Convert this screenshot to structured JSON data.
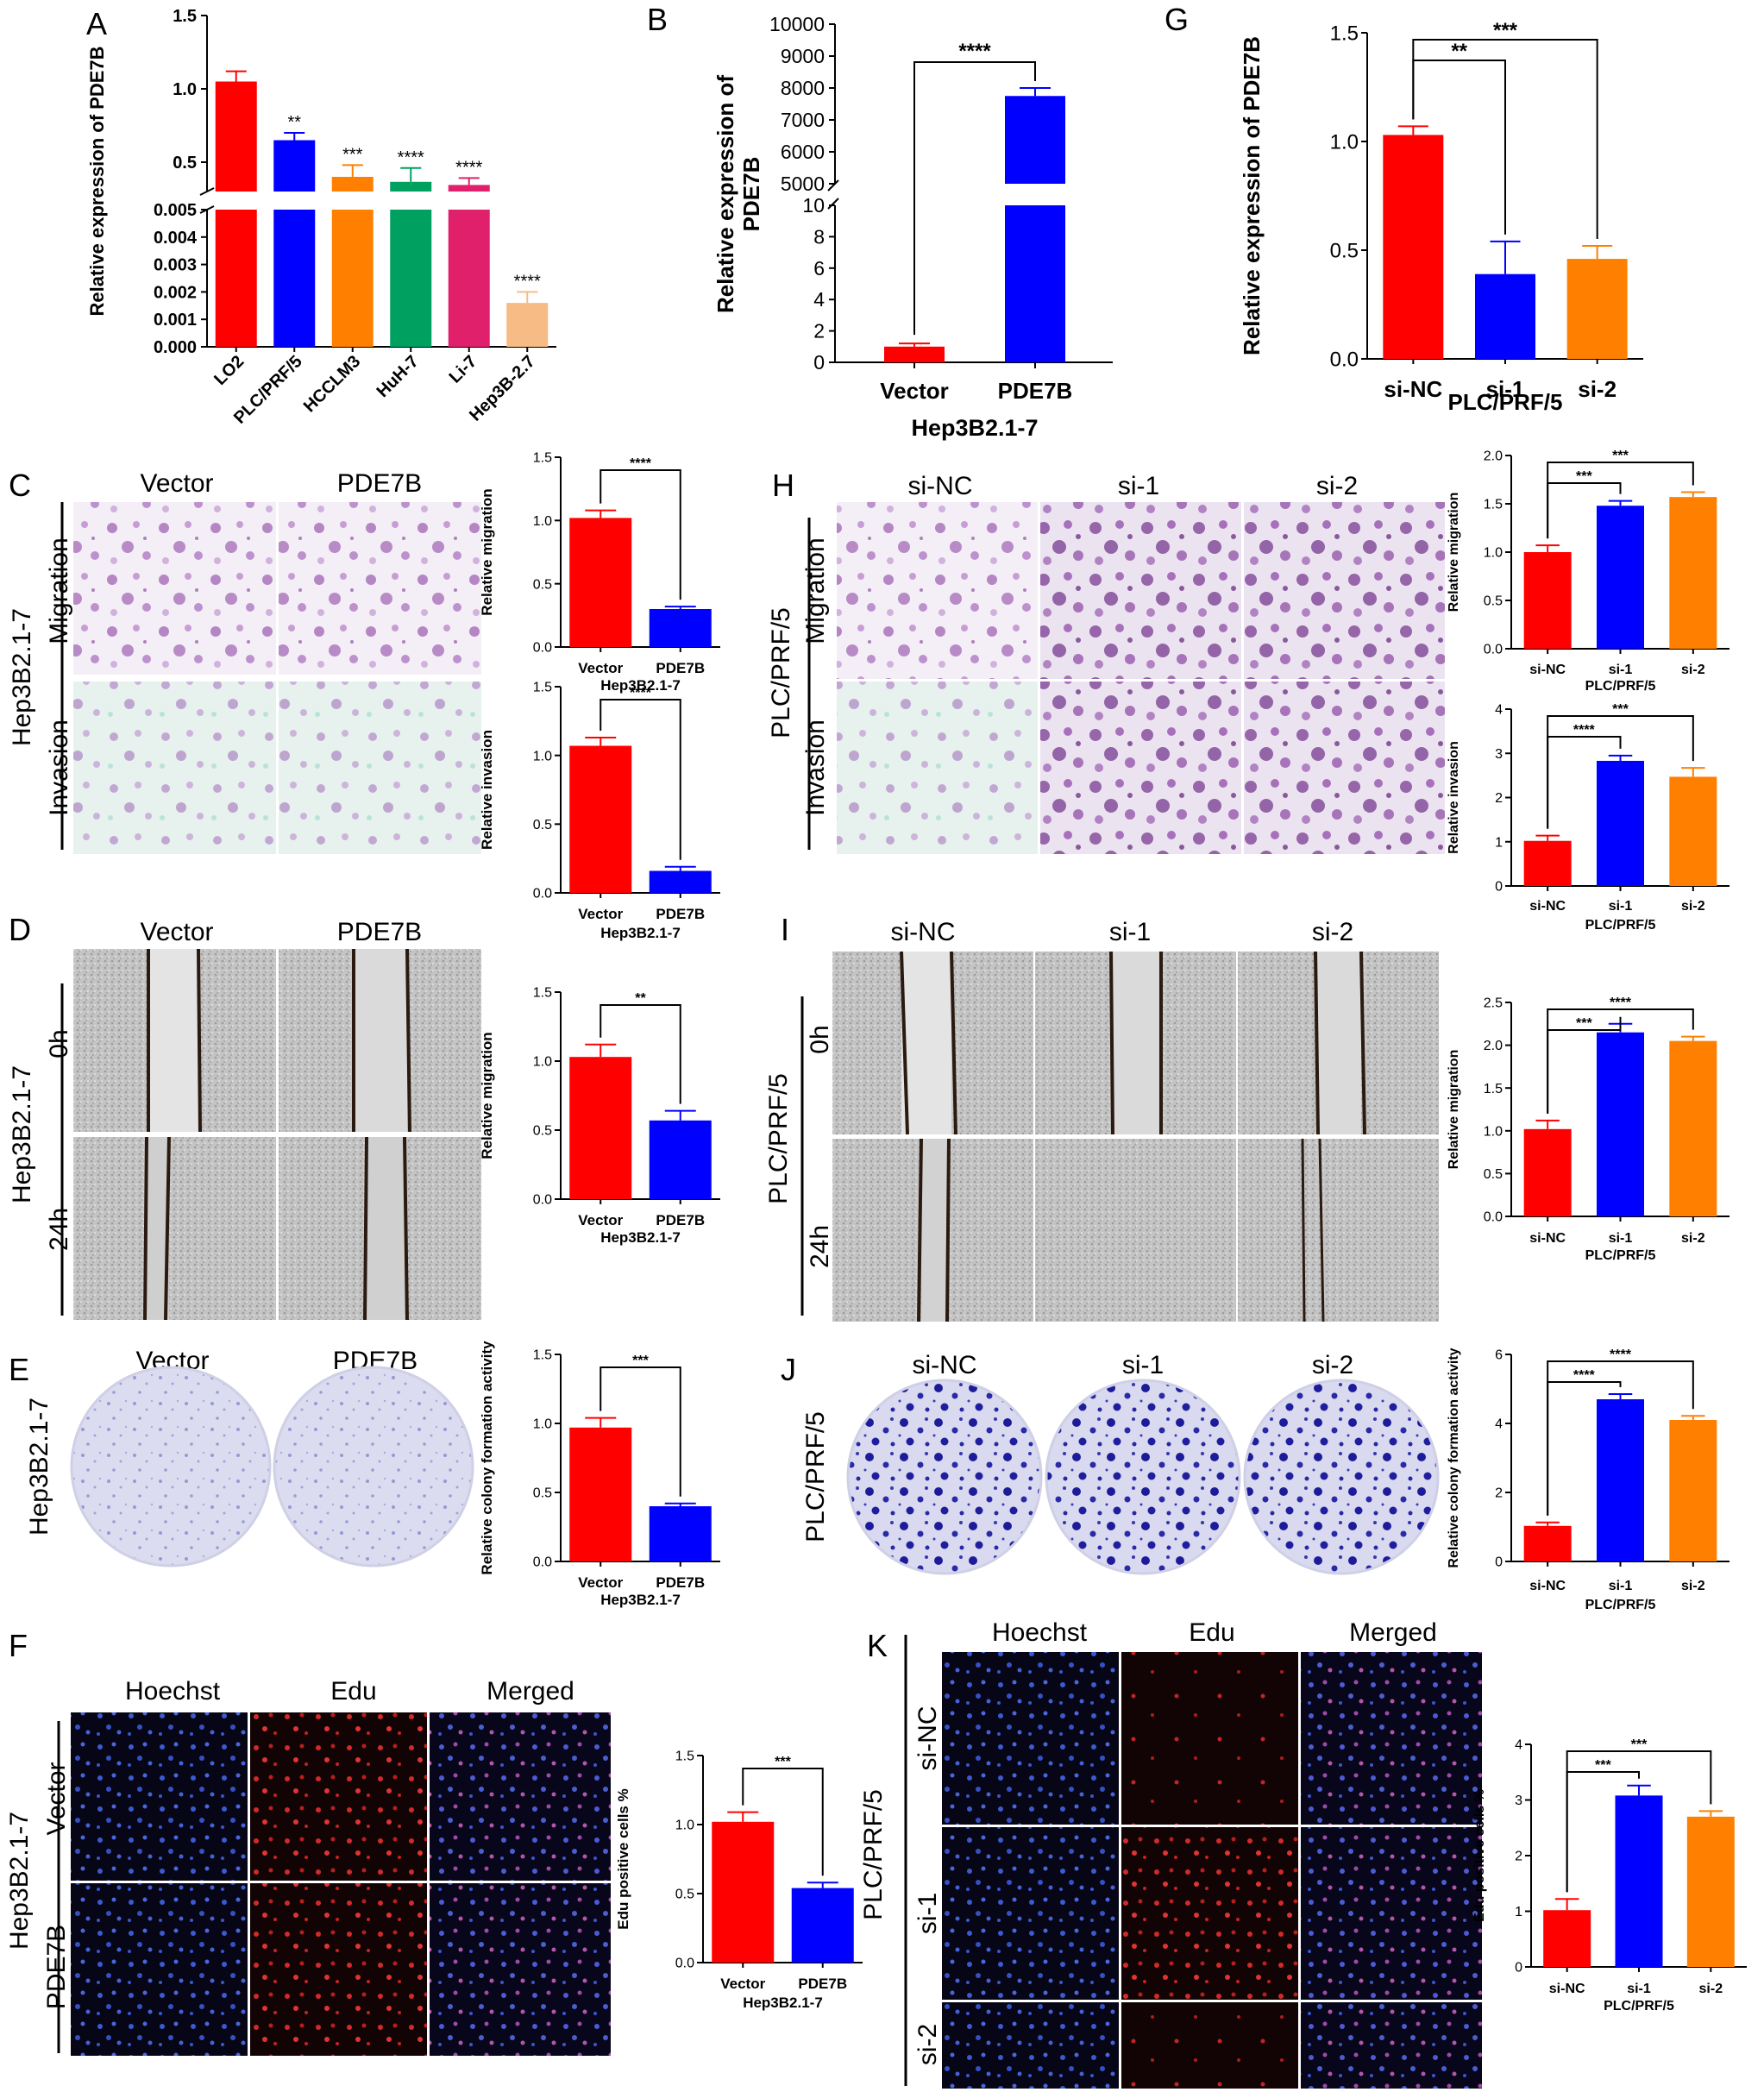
{
  "colors": {
    "red": "#ff0000",
    "blue": "#0000ff",
    "orange": "#ff8000",
    "green": "#00a060",
    "magenta": "#e0206a",
    "peach": "#f7bb86"
  },
  "panels": {
    "A": {
      "letter": "A"
    },
    "B": {
      "letter": "B"
    },
    "C": {
      "letter": "C"
    },
    "D": {
      "letter": "D"
    },
    "E": {
      "letter": "E"
    },
    "F": {
      "letter": "F"
    },
    "G": {
      "letter": "G"
    },
    "H": {
      "letter": "H"
    },
    "I": {
      "letter": "I"
    },
    "J": {
      "letter": "J"
    },
    "K": {
      "letter": "K"
    }
  },
  "image_labels": {
    "C": {
      "cols": [
        "Vector",
        "PDE7B"
      ],
      "rows": [
        "Migration",
        "Invasion"
      ],
      "group": "Hep3B2.1-7"
    },
    "D": {
      "cols": [
        "Vector",
        "PDE7B"
      ],
      "rows": [
        "0h",
        "24h"
      ],
      "group": "Hep3B2.1-7"
    },
    "E": {
      "cols": [
        "Vector",
        "PDE7B"
      ],
      "group": "Hep3B2.1-7"
    },
    "F": {
      "cols": [
        "Hoechst",
        "Edu",
        "Merged"
      ],
      "rows": [
        "Vector",
        "PDE7B"
      ],
      "group": "Hep3B2.1-7"
    },
    "H": {
      "cols": [
        "si-NC",
        "si-1",
        "si-2"
      ],
      "rows": [
        "Migration",
        "Invasion"
      ],
      "group": "PLC/PRF/5"
    },
    "I": {
      "cols": [
        "si-NC",
        "si-1",
        "si-2"
      ],
      "rows": [
        "0h",
        "24h"
      ],
      "group": "PLC/PRF/5"
    },
    "J": {
      "cols": [
        "si-NC",
        "si-1",
        "si-2"
      ],
      "group": "PLC/PRF/5"
    },
    "K": {
      "cols": [
        "Hoechst",
        "Edu",
        "Merged"
      ],
      "rows": [
        "si-NC",
        "si-1",
        "si-2"
      ],
      "group": "PLC/PRF/5"
    }
  },
  "chart_data": [
    {
      "id": "A",
      "type": "bar",
      "ylabel": "Relative expression of PDE7B",
      "categories": [
        "LO2",
        "PLC/PRF/5",
        "HCCLM3",
        "HuH-7",
        "Li-7",
        "Hep3B-2.7"
      ],
      "values": [
        1.05,
        0.65,
        0.4,
        0.12,
        0.06,
        0.0016
      ],
      "errors": [
        0.07,
        0.05,
        0.08,
        0.04,
        0.02,
        0.0004
      ],
      "sig": [
        "",
        "**",
        "***",
        "****",
        "****",
        "****"
      ],
      "broken_axis": true,
      "upper_ticks": [
        "0.5",
        "1.0",
        "1.5"
      ],
      "lower_ticks": [
        "0.000",
        "0.001",
        "0.002",
        "0.003",
        "0.004",
        "0.005"
      ]
    },
    {
      "id": "B",
      "type": "bar",
      "ylabel": "Relative expression of PDE7B",
      "xlabel": "Hep3B2.1-7",
      "categories": [
        "Vector",
        "PDE7B"
      ],
      "values": [
        1.0,
        7750
      ],
      "errors": [
        0.2,
        250
      ],
      "broken_axis": true,
      "upper_ticks": [
        "5000",
        "6000",
        "7000",
        "8000",
        "9000",
        "10000"
      ],
      "lower_ticks": [
        "0",
        "2",
        "4",
        "6",
        "8",
        "10"
      ],
      "comparisons": [
        {
          "a": 0,
          "b": 1,
          "label": "****"
        }
      ]
    },
    {
      "id": "G",
      "type": "bar",
      "ylabel": "Relative expression of PDE7B",
      "xlabel": "PLC/PRF/5",
      "categories": [
        "si-NC",
        "si-1",
        "si-2"
      ],
      "values": [
        1.03,
        0.39,
        0.46
      ],
      "errors": [
        0.04,
        0.15,
        0.06
      ],
      "ylim": [
        0,
        1.5
      ],
      "ticks": [
        "0.0",
        "0.5",
        "1.0",
        "1.5"
      ],
      "comparisons": [
        {
          "a": 0,
          "b": 1,
          "label": "**"
        },
        {
          "a": 0,
          "b": 2,
          "label": "***"
        }
      ]
    },
    {
      "id": "C1",
      "type": "bar",
      "ylabel": "Relative migration",
      "xlabel": "Hep3B2.1-7",
      "categories": [
        "Vector",
        "PDE7B"
      ],
      "values": [
        1.02,
        0.3
      ],
      "errors": [
        0.06,
        0.02
      ],
      "ylim": [
        0,
        1.5
      ],
      "ticks": [
        "0.0",
        "0.5",
        "1.0",
        "1.5"
      ],
      "comparisons": [
        {
          "a": 0,
          "b": 1,
          "label": "****"
        }
      ]
    },
    {
      "id": "C2",
      "type": "bar",
      "ylabel": "Relative invasion",
      "xlabel": "Hep3B2.1-7",
      "categories": [
        "Vector",
        "PDE7B"
      ],
      "values": [
        1.07,
        0.16
      ],
      "errors": [
        0.06,
        0.03
      ],
      "ylim": [
        0,
        1.5
      ],
      "ticks": [
        "0.0",
        "0.5",
        "1.0",
        "1.5"
      ],
      "comparisons": [
        {
          "a": 0,
          "b": 1,
          "label": "****"
        }
      ]
    },
    {
      "id": "H1",
      "type": "bar",
      "ylabel": "Relative migration",
      "xlabel": "PLC/PRF/5",
      "categories": [
        "si-NC",
        "si-1",
        "si-2"
      ],
      "values": [
        1.0,
        1.48,
        1.57
      ],
      "errors": [
        0.07,
        0.05,
        0.05
      ],
      "ylim": [
        0,
        2.0
      ],
      "ticks": [
        "0.0",
        "0.5",
        "1.0",
        "1.5",
        "2.0"
      ],
      "comparisons": [
        {
          "a": 0,
          "b": 1,
          "label": "***"
        },
        {
          "a": 0,
          "b": 2,
          "label": "***"
        }
      ]
    },
    {
      "id": "H2",
      "type": "bar",
      "ylabel": "Relative invasion",
      "xlabel": "PLC/PRF/5",
      "categories": [
        "si-NC",
        "si-1",
        "si-2"
      ],
      "values": [
        1.02,
        2.83,
        2.47
      ],
      "errors": [
        0.12,
        0.12,
        0.2
      ],
      "ylim": [
        0,
        4
      ],
      "ticks": [
        "0",
        "1",
        "2",
        "3",
        "4"
      ],
      "comparisons": [
        {
          "a": 0,
          "b": 1,
          "label": "****"
        },
        {
          "a": 0,
          "b": 2,
          "label": "***"
        }
      ]
    },
    {
      "id": "D1",
      "type": "bar",
      "ylabel": "Relative migration",
      "xlabel": "Hep3B2.1-7",
      "categories": [
        "Vector",
        "PDE7B"
      ],
      "values": [
        1.03,
        0.57
      ],
      "errors": [
        0.09,
        0.07
      ],
      "ylim": [
        0,
        1.5
      ],
      "ticks": [
        "0.0",
        "0.5",
        "1.0",
        "1.5"
      ],
      "comparisons": [
        {
          "a": 0,
          "b": 1,
          "label": "**"
        }
      ]
    },
    {
      "id": "I1",
      "type": "bar",
      "ylabel": "Relative migration",
      "xlabel": "PLC/PRF/5",
      "categories": [
        "si-NC",
        "si-1",
        "si-2"
      ],
      "values": [
        1.02,
        2.15,
        2.05
      ],
      "errors": [
        0.1,
        0.1,
        0.05
      ],
      "ylim": [
        0,
        2.5
      ],
      "ticks": [
        "0.0",
        "0.5",
        "1.0",
        "1.5",
        "2.0",
        "2.5"
      ],
      "comparisons": [
        {
          "a": 0,
          "b": 1,
          "label": "***"
        },
        {
          "a": 0,
          "b": 2,
          "label": "****"
        }
      ]
    },
    {
      "id": "E1",
      "type": "bar",
      "ylabel": "Relative colony formation activity",
      "xlabel": "Hep3B2.1-7",
      "categories": [
        "Vector",
        "PDE7B"
      ],
      "values": [
        0.97,
        0.4
      ],
      "errors": [
        0.07,
        0.02
      ],
      "ylim": [
        0,
        1.5
      ],
      "ticks": [
        "0.0",
        "0.5",
        "1.0",
        "1.5"
      ],
      "comparisons": [
        {
          "a": 0,
          "b": 1,
          "label": "***"
        }
      ]
    },
    {
      "id": "J1",
      "type": "bar",
      "ylabel": "Relative colony formation activity",
      "xlabel": "PLC/PRF/5",
      "categories": [
        "si-NC",
        "si-1",
        "si-2"
      ],
      "values": [
        1.03,
        4.7,
        4.1
      ],
      "errors": [
        0.1,
        0.15,
        0.12
      ],
      "ylim": [
        0,
        6
      ],
      "ticks": [
        "0",
        "2",
        "4",
        "6"
      ],
      "comparisons": [
        {
          "a": 0,
          "b": 1,
          "label": "****"
        },
        {
          "a": 0,
          "b": 2,
          "label": "****"
        }
      ]
    },
    {
      "id": "F1",
      "type": "bar",
      "ylabel": "Edu positive cells %",
      "xlabel": "Hep3B2.1-7",
      "categories": [
        "Vector",
        "PDE7B"
      ],
      "values": [
        1.02,
        0.54
      ],
      "errors": [
        0.07,
        0.04
      ],
      "ylim": [
        0,
        1.5
      ],
      "ticks": [
        "0.0",
        "0.5",
        "1.0",
        "1.5"
      ],
      "comparisons": [
        {
          "a": 0,
          "b": 1,
          "label": "***"
        }
      ]
    },
    {
      "id": "K1",
      "type": "bar",
      "ylabel": "Edu positive cells %",
      "xlabel": "PLC/PRF/5",
      "categories": [
        "si-NC",
        "si-1",
        "si-2"
      ],
      "values": [
        1.02,
        3.08,
        2.7
      ],
      "errors": [
        0.2,
        0.18,
        0.1
      ],
      "ylim": [
        0,
        4
      ],
      "ticks": [
        "0",
        "1",
        "2",
        "3",
        "4"
      ],
      "comparisons": [
        {
          "a": 0,
          "b": 1,
          "label": "***"
        },
        {
          "a": 0,
          "b": 2,
          "label": "***"
        }
      ]
    }
  ]
}
